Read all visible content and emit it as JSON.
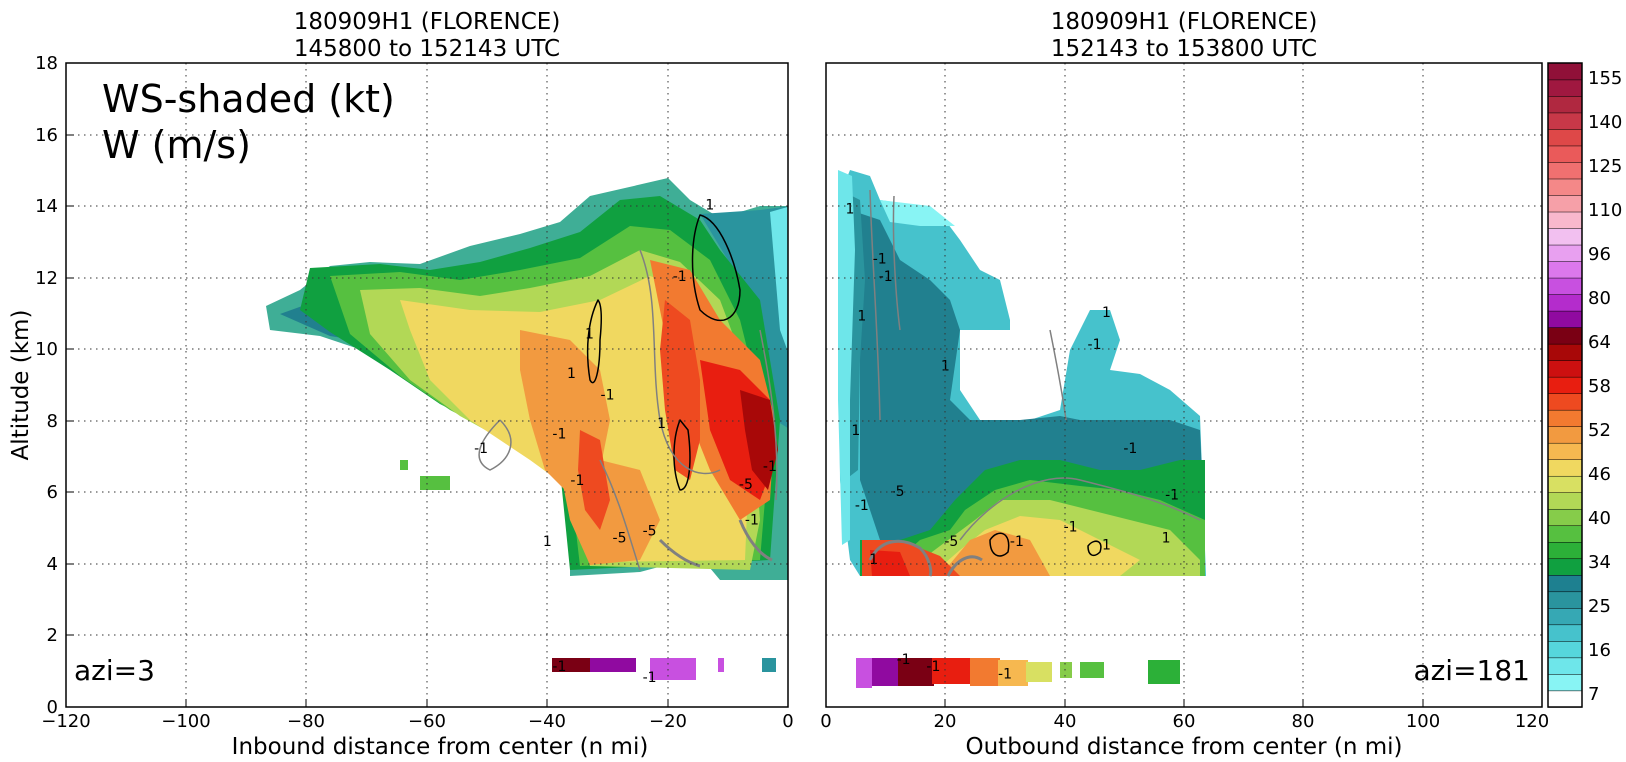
{
  "chart_data": [
    {
      "type": "heatmap",
      "title_line1": "180909H1 (FLORENCE)",
      "title_line2": "145800 to 152143 UTC",
      "xlabel": "Inbound distance from center (n mi)",
      "ylabel": "Altitude (km)",
      "xlim": [
        -120,
        0
      ],
      "ylim": [
        0,
        18
      ],
      "xticks": [
        "−120",
        "−100",
        "−80",
        "−60",
        "−40",
        "−20",
        "0"
      ],
      "yticks": [
        "0",
        "2",
        "4",
        "6",
        "8",
        "10",
        "12",
        "14",
        "16",
        "18"
      ],
      "overlay_line1": "WS-shaded (kt)",
      "overlay_line2": "W (m/s)",
      "corner_label": "azi=3",
      "contour_labels": [
        {
          "x": -51,
          "y": 7.1,
          "text": "-1"
        },
        {
          "x": -18,
          "y": 11.9,
          "text": "-1"
        },
        {
          "x": -13,
          "y": 13.9,
          "text": "1"
        },
        {
          "x": -33,
          "y": 10.3,
          "text": "1"
        },
        {
          "x": -36,
          "y": 9.2,
          "text": "1"
        },
        {
          "x": -30,
          "y": 8.6,
          "text": "-1"
        },
        {
          "x": -38,
          "y": 7.5,
          "text": "-1"
        },
        {
          "x": -35,
          "y": 6.2,
          "text": "-1"
        },
        {
          "x": -21,
          "y": 7.8,
          "text": "1"
        },
        {
          "x": -28,
          "y": 4.6,
          "text": "-5"
        },
        {
          "x": -23,
          "y": 4.8,
          "text": "-5"
        },
        {
          "x": -40,
          "y": 4.5,
          "text": "1"
        },
        {
          "x": -7,
          "y": 6.1,
          "text": "-5"
        },
        {
          "x": -6,
          "y": 5.1,
          "text": "-1"
        },
        {
          "x": -3,
          "y": 6.6,
          "text": "-1"
        },
        {
          "x": -38,
          "y": 1.0,
          "text": "-1"
        },
        {
          "x": -23,
          "y": 0.7,
          "text": "-1"
        }
      ]
    },
    {
      "type": "heatmap",
      "title_line1": "180909H1 (FLORENCE)",
      "title_line2": "152143 to 153800 UTC",
      "xlabel": "Outbound distance from center (n mi)",
      "xlim": [
        0,
        120
      ],
      "ylim": [
        0,
        18
      ],
      "xticks": [
        "0",
        "20",
        "40",
        "60",
        "80",
        "100",
        "120"
      ],
      "corner_label": "azi=181",
      "contour_labels": [
        {
          "x": 4,
          "y": 13.8,
          "text": "1"
        },
        {
          "x": 9,
          "y": 12.4,
          "text": "-1"
        },
        {
          "x": 10,
          "y": 11.9,
          "text": "-1"
        },
        {
          "x": 6,
          "y": 10.8,
          "text": "1"
        },
        {
          "x": 20,
          "y": 9.4,
          "text": "1"
        },
        {
          "x": 45,
          "y": 10.0,
          "text": "-1"
        },
        {
          "x": 47,
          "y": 10.9,
          "text": "1"
        },
        {
          "x": 5,
          "y": 7.6,
          "text": "1"
        },
        {
          "x": 51,
          "y": 7.1,
          "text": "-1"
        },
        {
          "x": 12,
          "y": 5.9,
          "text": "-5"
        },
        {
          "x": 6,
          "y": 5.5,
          "text": "-1"
        },
        {
          "x": 58,
          "y": 5.8,
          "text": "-1"
        },
        {
          "x": 41,
          "y": 4.9,
          "text": "-1"
        },
        {
          "x": 57,
          "y": 4.6,
          "text": "1"
        },
        {
          "x": 21,
          "y": 4.5,
          "text": "-5"
        },
        {
          "x": 32,
          "y": 4.5,
          "text": "-1"
        },
        {
          "x": 47,
          "y": 4.4,
          "text": "1"
        },
        {
          "x": 8,
          "y": 4.0,
          "text": "1"
        },
        {
          "x": 13,
          "y": 1.2,
          "text": "-1"
        },
        {
          "x": 18,
          "y": 1.0,
          "text": "-1"
        },
        {
          "x": 30,
          "y": 0.8,
          "text": "-1"
        }
      ]
    }
  ],
  "colorbar": {
    "tick_labels": [
      "155",
      "140",
      "125",
      "110",
      "96",
      "80",
      "64",
      "58",
      "52",
      "46",
      "40",
      "34",
      "25",
      "16",
      "7"
    ],
    "colors": [
      "#ffffff",
      "#88f4f4",
      "#6ee6ea",
      "#56d6dc",
      "#46c2cc",
      "#36a8b4",
      "#2a949e",
      "#1e8090",
      "#10a040",
      "#2cb038",
      "#56c040",
      "#86cc4a",
      "#b2d856",
      "#d8e062",
      "#f0d860",
      "#f6b850",
      "#f29a40",
      "#f27a30",
      "#ee4a20",
      "#e81e10",
      "#cc1010",
      "#a80808",
      "#7a0014",
      "#900aa0",
      "#b42ccc",
      "#c850e0",
      "#dc78ec",
      "#e8a0f0",
      "#f2c0f0",
      "#f8b8cc",
      "#f6a0a8",
      "#f48888",
      "#f07070",
      "#ea5a5a",
      "#de4848",
      "#c83848",
      "#b02840",
      "#a01840",
      "#901038"
    ]
  }
}
